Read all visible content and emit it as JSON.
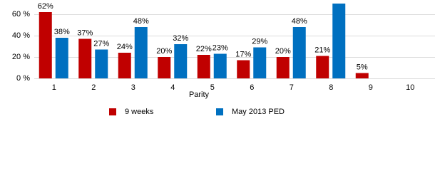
{
  "chart_data": {
    "type": "bar",
    "x_label": "Parity",
    "categories": [
      "1",
      "2",
      "3",
      "4",
      "5",
      "6",
      "7",
      "8",
      "9",
      "10"
    ],
    "series": [
      {
        "name": "9 weeks",
        "color": "#c00000",
        "values": [
          62,
          37,
          24,
          20,
          22,
          17,
          20,
          21,
          5,
          null
        ],
        "value_labels": [
          "62%",
          "37%",
          "24%",
          "20%",
          "22%",
          "17%",
          "20%",
          "21%",
          "5%",
          null
        ]
      },
      {
        "name": "May 2013 PED",
        "color": "#0070c0",
        "values": [
          38,
          27,
          48,
          32,
          23,
          29,
          48,
          70,
          null,
          null
        ],
        "value_labels": [
          "38%",
          "27%",
          "48%",
          "32%",
          "23%",
          "29%",
          "48%",
          null,
          null,
          null
        ]
      }
    ],
    "ylim": [
      0,
      70
    ],
    "yticks": [
      {
        "value": 0,
        "label": "0 %"
      },
      {
        "value": 20,
        "label": "20 %"
      },
      {
        "value": 40,
        "label": "40 %"
      },
      {
        "value": 60,
        "label": "60 %"
      }
    ],
    "grid": true
  }
}
